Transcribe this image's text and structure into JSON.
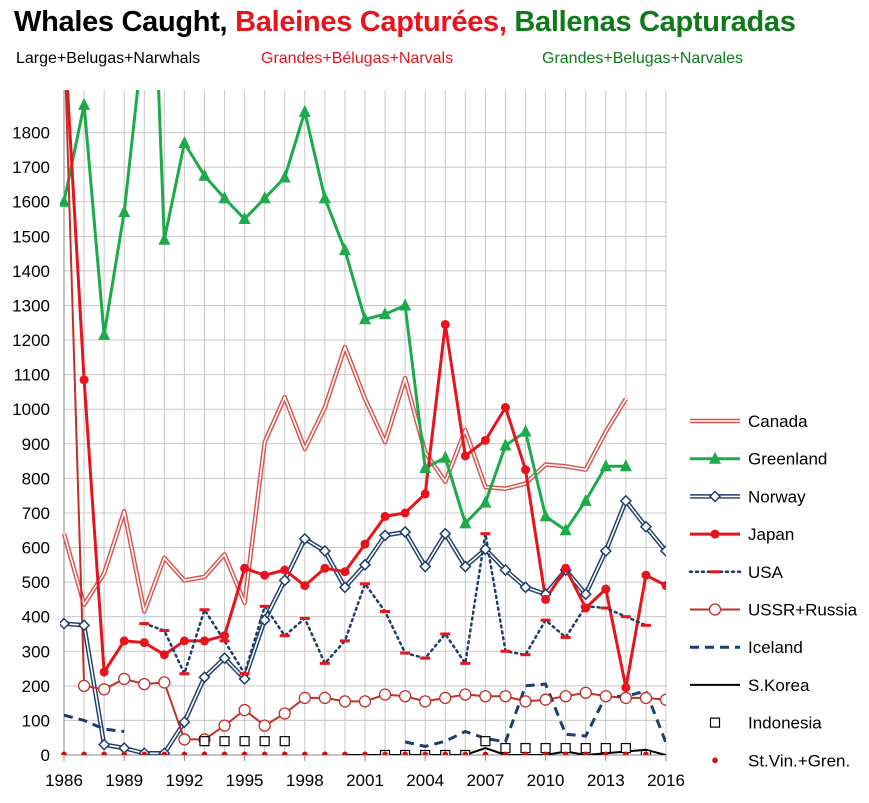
{
  "title": {
    "en": "Whales Caught,",
    "fr": "Baleines Capturées,",
    "es": "Ballenas Capturadas",
    "en_color": "#000000",
    "fr_color": "#e8141c",
    "es_color": "#0e7a1a"
  },
  "subtitle": {
    "en": "Large+Belugas+Narwhals",
    "fr": "Grandes+Bélugas+Narvals",
    "es": "Grandes+Belugas+Narvales"
  },
  "chart_data": {
    "type": "line",
    "xlim": [
      1986,
      2016
    ],
    "ylim": [
      0,
      1900
    ],
    "grid": true,
    "legend_position": "right",
    "x_ticks": [
      1986,
      1989,
      1992,
      1995,
      1998,
      2001,
      2004,
      2007,
      2010,
      2013,
      2016
    ],
    "y_ticks": [
      0,
      100,
      200,
      300,
      400,
      500,
      600,
      700,
      800,
      900,
      1000,
      1100,
      1200,
      1300,
      1400,
      1500,
      1600,
      1700,
      1800
    ],
    "series": [
      {
        "name": "Canada",
        "color": "#d9534f",
        "style": "double",
        "marker": "none",
        "points": [
          [
            1986,
            640
          ],
          [
            1987,
            435
          ],
          [
            1988,
            525
          ],
          [
            1989,
            705
          ],
          [
            1990,
            415
          ],
          [
            1991,
            570
          ],
          [
            1992,
            505
          ],
          [
            1993,
            515
          ],
          [
            1994,
            580
          ],
          [
            1995,
            440
          ],
          [
            1996,
            905
          ],
          [
            1997,
            1035
          ],
          [
            1998,
            885
          ],
          [
            1999,
            1005
          ],
          [
            2000,
            1180
          ],
          [
            2001,
            1030
          ],
          [
            2002,
            905
          ],
          [
            2003,
            1090
          ],
          [
            2004,
            875
          ],
          [
            2005,
            790
          ],
          [
            2006,
            940
          ],
          [
            2007,
            775
          ],
          [
            2008,
            770
          ],
          [
            2009,
            785
          ],
          [
            2010,
            840
          ],
          [
            2011,
            835
          ],
          [
            2012,
            825
          ],
          [
            2013,
            935
          ],
          [
            2014,
            1030
          ]
        ]
      },
      {
        "name": "Greenland",
        "color": "#1daa4a",
        "style": "solid",
        "marker": "triangle",
        "points": [
          [
            1986,
            1600
          ],
          [
            1987,
            1880
          ],
          [
            1988,
            1215
          ],
          [
            1989,
            1570
          ],
          [
            1990,
            2100
          ],
          [
            1990.6,
            2100
          ],
          [
            1991,
            1490
          ],
          [
            1992,
            1770
          ],
          [
            1993,
            1675
          ],
          [
            1994,
            1610
          ],
          [
            1995,
            1550
          ],
          [
            1996,
            1610
          ],
          [
            1997,
            1670
          ],
          [
            1998,
            1860
          ],
          [
            1999,
            1610
          ],
          [
            2000,
            1460
          ],
          [
            2001,
            1260
          ],
          [
            2002,
            1275
          ],
          [
            2003,
            1300
          ],
          [
            2004,
            830
          ],
          [
            2005,
            860
          ],
          [
            2006,
            670
          ],
          [
            2007,
            730
          ],
          [
            2008,
            895
          ],
          [
            2009,
            935
          ],
          [
            2010,
            690
          ],
          [
            2011,
            650
          ],
          [
            2012,
            735
          ],
          [
            2013,
            835
          ],
          [
            2014,
            835
          ]
        ]
      },
      {
        "name": "Norway",
        "color": "#1f3d6b",
        "style": "double",
        "marker": "diamond",
        "points": [
          [
            1986,
            380
          ],
          [
            1987,
            375
          ],
          [
            1988,
            30
          ],
          [
            1989,
            20
          ],
          [
            1990,
            5
          ],
          [
            1991,
            5
          ],
          [
            1992,
            95
          ],
          [
            1993,
            225
          ],
          [
            1994,
            280
          ],
          [
            1995,
            220
          ],
          [
            1996,
            390
          ],
          [
            1997,
            505
          ],
          [
            1998,
            625
          ],
          [
            1999,
            590
          ],
          [
            2000,
            485
          ],
          [
            2001,
            550
          ],
          [
            2002,
            635
          ],
          [
            2003,
            645
          ],
          [
            2004,
            545
          ],
          [
            2005,
            640
          ],
          [
            2006,
            545
          ],
          [
            2007,
            595
          ],
          [
            2008,
            535
          ],
          [
            2009,
            485
          ],
          [
            2010,
            465
          ],
          [
            2011,
            535
          ],
          [
            2012,
            465
          ],
          [
            2013,
            590
          ],
          [
            2014,
            735
          ],
          [
            2015,
            660
          ],
          [
            2016,
            590
          ]
        ]
      },
      {
        "name": "Japan",
        "color": "#e8141c",
        "style": "solid",
        "marker": "circle",
        "points": [
          [
            1986,
            2100
          ],
          [
            1987,
            1085
          ],
          [
            1988,
            240
          ],
          [
            1989,
            330
          ],
          [
            1990,
            325
          ],
          [
            1991,
            290
          ],
          [
            1992,
            330
          ],
          [
            1993,
            330
          ],
          [
            1994,
            345
          ],
          [
            1995,
            540
          ],
          [
            1996,
            520
          ],
          [
            1997,
            535
          ],
          [
            1998,
            490
          ],
          [
            1999,
            540
          ],
          [
            2000,
            530
          ],
          [
            2001,
            610
          ],
          [
            2002,
            690
          ],
          [
            2003,
            700
          ],
          [
            2004,
            755
          ],
          [
            2005,
            1245
          ],
          [
            2006,
            865
          ],
          [
            2007,
            910
          ],
          [
            2008,
            1005
          ],
          [
            2009,
            825
          ],
          [
            2010,
            450
          ],
          [
            2011,
            540
          ],
          [
            2012,
            425
          ],
          [
            2013,
            480
          ],
          [
            2014,
            195
          ],
          [
            2015,
            520
          ],
          [
            2016,
            490
          ]
        ]
      },
      {
        "name": "USA",
        "color": "#1f3d6b",
        "style": "dotted",
        "marker": "dash",
        "points": [
          [
            1990,
            380
          ],
          [
            1991,
            360
          ],
          [
            1992,
            235
          ],
          [
            1993,
            420
          ],
          [
            1994,
            330
          ],
          [
            1995,
            235
          ],
          [
            1996,
            430
          ],
          [
            1997,
            345
          ],
          [
            1998,
            395
          ],
          [
            1999,
            265
          ],
          [
            2000,
            330
          ],
          [
            2001,
            495
          ],
          [
            2002,
            415
          ],
          [
            2003,
            295
          ],
          [
            2004,
            280
          ],
          [
            2005,
            350
          ],
          [
            2006,
            265
          ],
          [
            2007,
            640
          ],
          [
            2008,
            300
          ],
          [
            2009,
            290
          ],
          [
            2010,
            390
          ],
          [
            2011,
            340
          ],
          [
            2012,
            430
          ],
          [
            2013,
            425
          ],
          [
            2014,
            400
          ],
          [
            2015,
            375
          ]
        ]
      },
      {
        "name": "USSR+Russia",
        "color": "#c0302a",
        "style": "solid",
        "marker": "open-circle",
        "points": [
          [
            1986,
            2100
          ],
          [
            1987,
            200
          ],
          [
            1988,
            190
          ],
          [
            1989,
            220
          ],
          [
            1990,
            205
          ],
          [
            1991,
            210
          ],
          [
            1992,
            45
          ],
          [
            1993,
            45
          ],
          [
            1994,
            85
          ],
          [
            1995,
            130
          ],
          [
            1996,
            85
          ],
          [
            1997,
            120
          ],
          [
            1998,
            165
          ],
          [
            1999,
            165
          ],
          [
            2000,
            155
          ],
          [
            2001,
            155
          ],
          [
            2002,
            175
          ],
          [
            2003,
            170
          ],
          [
            2004,
            155
          ],
          [
            2005,
            165
          ],
          [
            2006,
            175
          ],
          [
            2007,
            170
          ],
          [
            2008,
            170
          ],
          [
            2009,
            155
          ],
          [
            2010,
            160
          ],
          [
            2011,
            170
          ],
          [
            2012,
            180
          ],
          [
            2013,
            170
          ],
          [
            2014,
            165
          ],
          [
            2015,
            165
          ],
          [
            2016,
            160
          ]
        ]
      },
      {
        "name": "Iceland",
        "color": "#1f3d6b",
        "style": "dashed",
        "marker": "none",
        "points_groups": [
          [
            [
              1986,
              115
            ],
            [
              1987,
              100
            ],
            [
              1988,
              75
            ],
            [
              1989,
              68
            ]
          ],
          [
            [
              2003,
              38
            ],
            [
              2004,
              25
            ],
            [
              2005,
              40
            ],
            [
              2006,
              68
            ],
            [
              2007,
              48
            ],
            [
              2008,
              38
            ],
            [
              2009,
              200
            ],
            [
              2010,
              205
            ],
            [
              2011,
              60
            ],
            [
              2012,
              55
            ],
            [
              2013,
              170
            ],
            [
              2014,
              170
            ],
            [
              2015,
              185
            ],
            [
              2016,
              35
            ]
          ]
        ]
      },
      {
        "name": "S.Korea",
        "color": "#000000",
        "style": "solid",
        "marker": "none",
        "points": [
          [
            2000,
            0
          ],
          [
            2001,
            0
          ],
          [
            2002,
            0
          ],
          [
            2003,
            0
          ],
          [
            2004,
            0
          ],
          [
            2005,
            0
          ],
          [
            2006,
            0
          ],
          [
            2007,
            20
          ],
          [
            2008,
            0
          ],
          [
            2009,
            0
          ],
          [
            2010,
            0
          ],
          [
            2011,
            10
          ],
          [
            2012,
            0
          ],
          [
            2013,
            5
          ],
          [
            2014,
            10
          ],
          [
            2015,
            15
          ],
          [
            2016,
            0
          ]
        ]
      },
      {
        "name": "Indonesia",
        "color": "#000000",
        "style": "none",
        "marker": "open-square",
        "points": [
          [
            1993,
            40
          ],
          [
            1994,
            40
          ],
          [
            1995,
            40
          ],
          [
            1996,
            40
          ],
          [
            1997,
            40
          ],
          [
            2002,
            0
          ],
          [
            2003,
            0
          ],
          [
            2004,
            0
          ],
          [
            2005,
            0
          ],
          [
            2006,
            0
          ],
          [
            2007,
            40
          ],
          [
            2008,
            20
          ],
          [
            2009,
            20
          ],
          [
            2010,
            20
          ],
          [
            2011,
            20
          ],
          [
            2012,
            20
          ],
          [
            2013,
            20
          ],
          [
            2014,
            20
          ],
          [
            2015,
            0
          ]
        ]
      },
      {
        "name": "St.Vin.+Gren.",
        "color": "#cc1111",
        "style": "none",
        "marker": "small-dot",
        "points": [
          [
            1986,
            2
          ],
          [
            1987,
            2
          ],
          [
            1988,
            2
          ],
          [
            1989,
            2
          ],
          [
            1990,
            2
          ],
          [
            1991,
            2
          ],
          [
            1992,
            2
          ],
          [
            1993,
            2
          ],
          [
            1994,
            2
          ],
          [
            1995,
            2
          ],
          [
            1996,
            2
          ],
          [
            1997,
            2
          ],
          [
            1998,
            2
          ],
          [
            1999,
            2
          ],
          [
            2000,
            2
          ],
          [
            2001,
            2
          ],
          [
            2002,
            2
          ],
          [
            2003,
            2
          ],
          [
            2004,
            2
          ],
          [
            2005,
            2
          ],
          [
            2006,
            2
          ],
          [
            2007,
            2
          ],
          [
            2008,
            2
          ],
          [
            2009,
            2
          ],
          [
            2010,
            2
          ],
          [
            2011,
            2
          ],
          [
            2012,
            2
          ],
          [
            2013,
            2
          ],
          [
            2014,
            2
          ],
          [
            2015,
            2
          ]
        ]
      }
    ]
  }
}
